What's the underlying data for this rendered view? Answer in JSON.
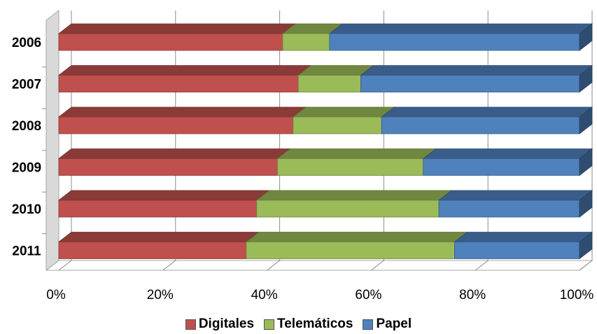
{
  "chart_data": {
    "type": "bar",
    "orientation": "horizontal",
    "stacked": "percent",
    "three_d": true,
    "categories": [
      "2006",
      "2007",
      "2008",
      "2009",
      "2010",
      "2011"
    ],
    "series": [
      {
        "name": "Digitales",
        "color": "#c0504d",
        "values": [
          43,
          46,
          45,
          42,
          38,
          36
        ]
      },
      {
        "name": "Telemáticos",
        "color": "#9bbb59",
        "values": [
          9,
          12,
          17,
          28,
          35,
          40
        ]
      },
      {
        "name": "Papel",
        "color": "#4f81bd",
        "values": [
          48,
          42,
          38,
          30,
          27,
          24
        ]
      }
    ],
    "x_ticks": [
      "0%",
      "20%",
      "40%",
      "60%",
      "80%",
      "100%"
    ],
    "xlim": [
      0,
      100
    ],
    "grid": true,
    "legend": "bottom"
  }
}
